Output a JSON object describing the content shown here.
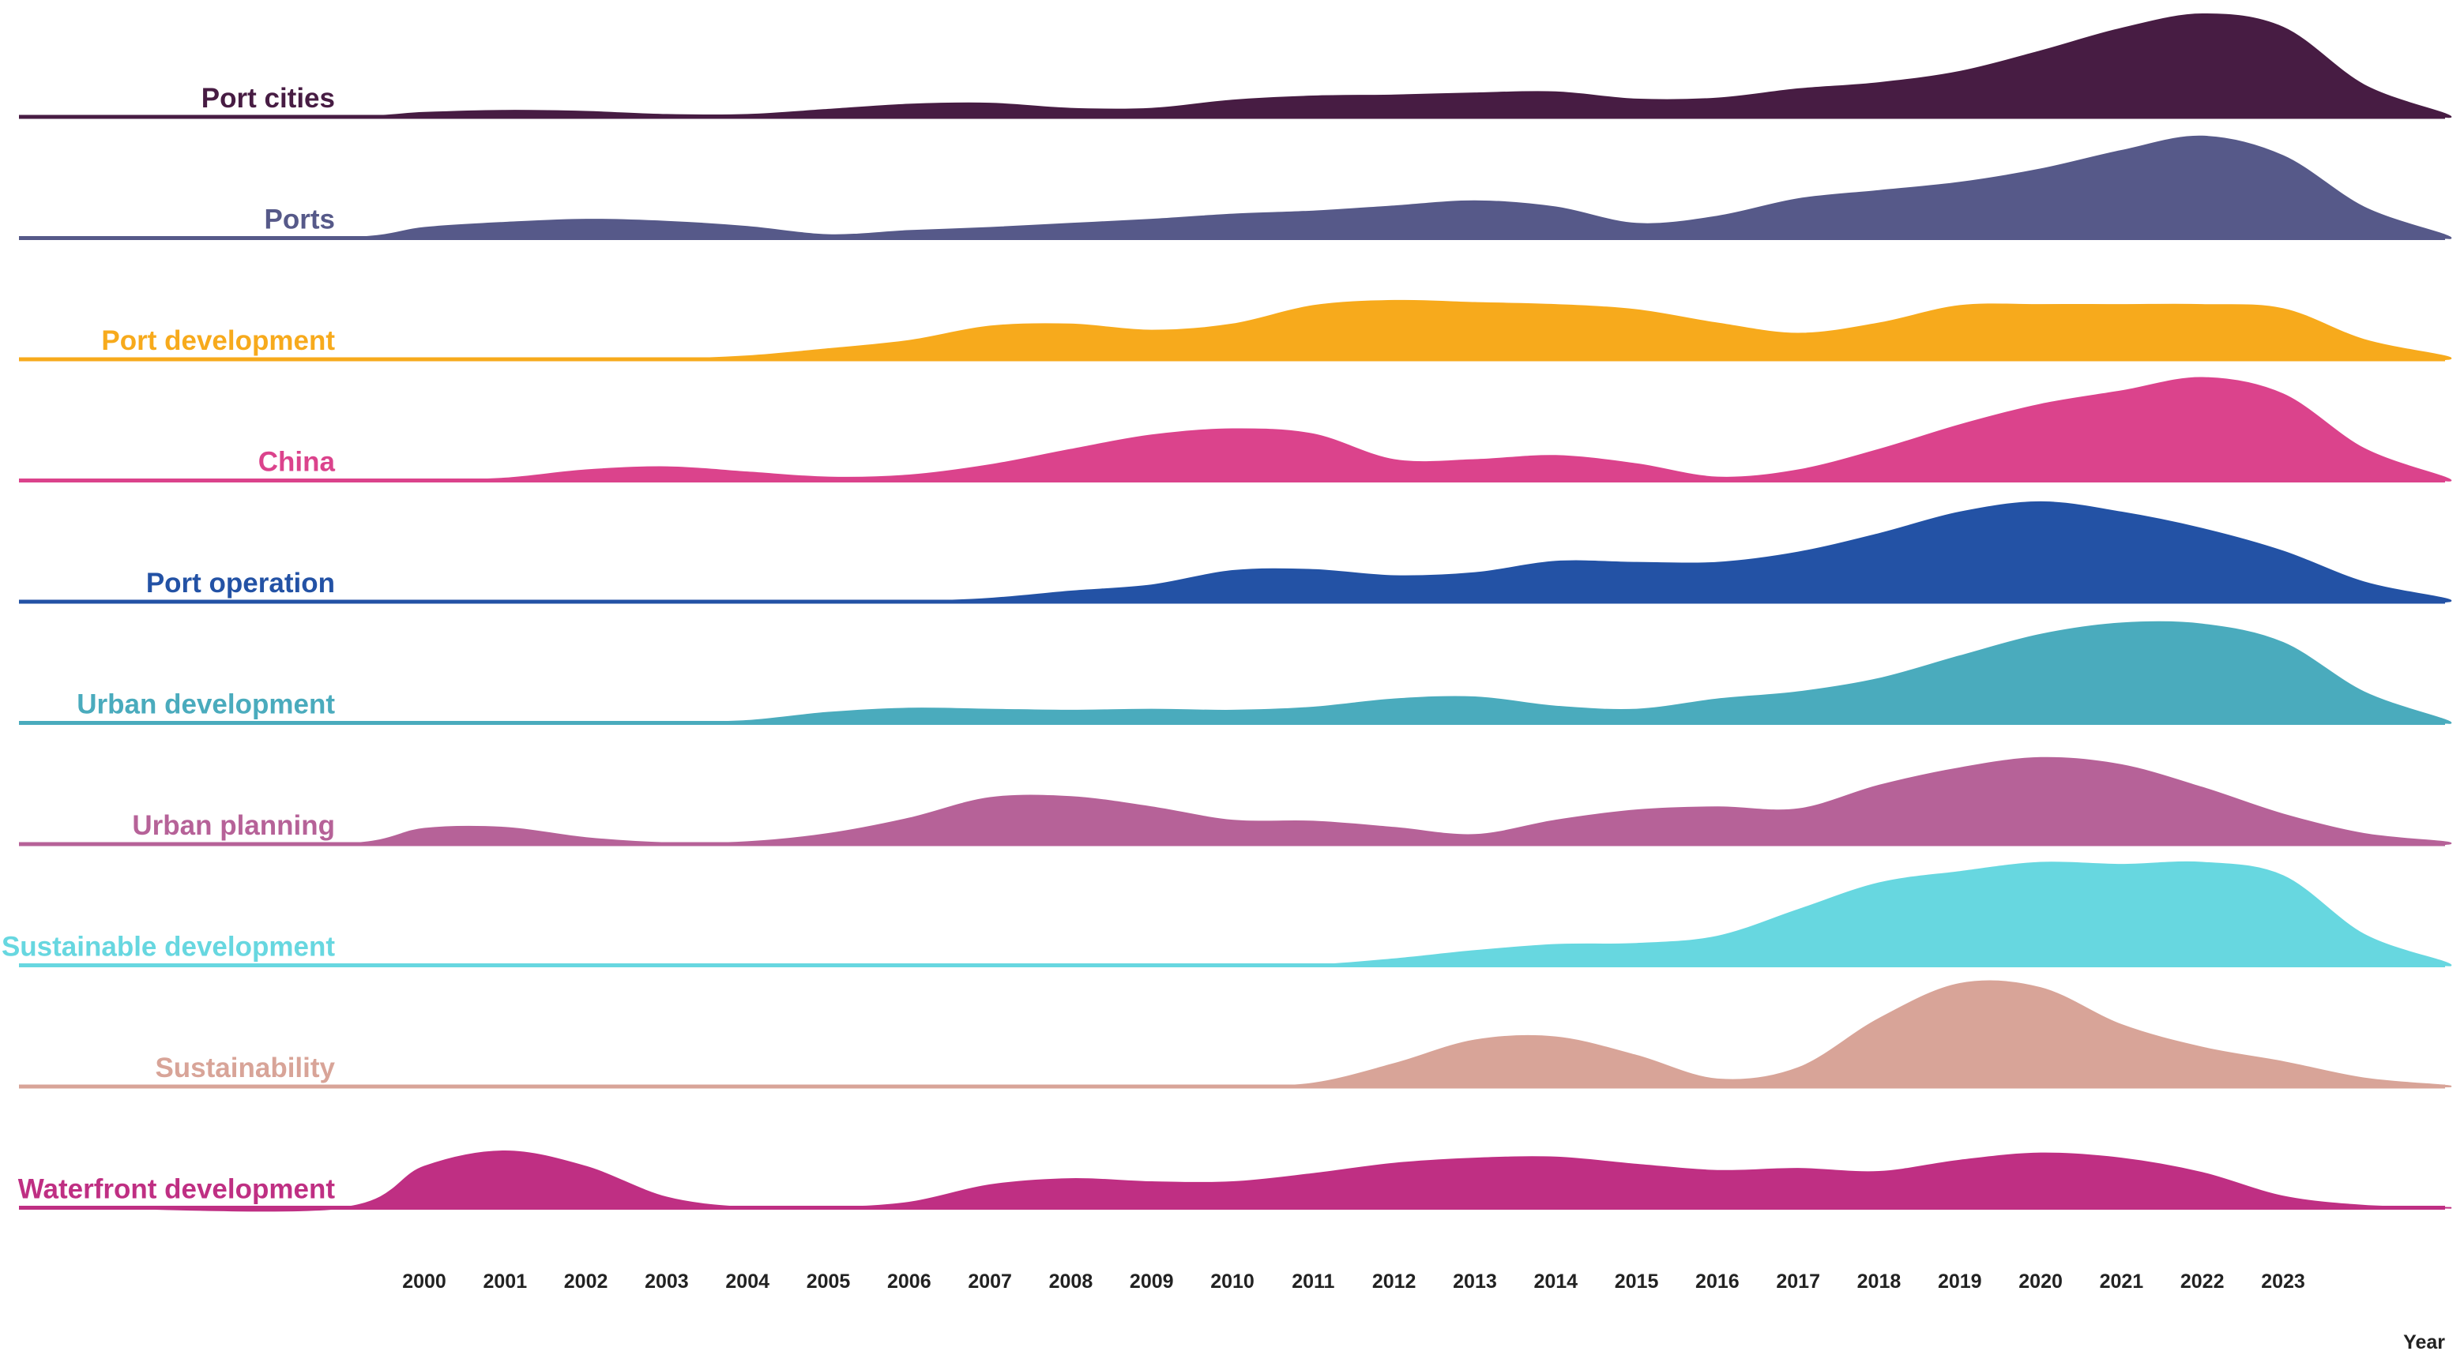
{
  "chart_data": {
    "type": "area",
    "subtype": "ridgeline",
    "title": "",
    "xlabel": "Year",
    "ylabel": "",
    "x_ticks": [
      2000,
      2001,
      2002,
      2003,
      2004,
      2005,
      2006,
      2007,
      2008,
      2009,
      2010,
      2011,
      2012,
      2013,
      2014,
      2015,
      2016,
      2017,
      2018,
      2019,
      2020,
      2021,
      2022,
      2023
    ],
    "x_range": [
      1996,
      2026
    ],
    "y_scale": "relative density (0-1 per ridge)",
    "x": [
      1996,
      1999,
      2000,
      2001,
      2002,
      2003,
      2004,
      2005,
      2006,
      2007,
      2008,
      2009,
      2010,
      2011,
      2012,
      2013,
      2014,
      2015,
      2016,
      2017,
      2018,
      2019,
      2020,
      2021,
      2022,
      2023,
      2024,
      2025,
      2026
    ],
    "series": [
      {
        "name": "Port cities",
        "color": "#471c43",
        "values": [
          0,
          0,
          0.04,
          0.06,
          0.05,
          0.02,
          0.02,
          0.07,
          0.12,
          0.13,
          0.08,
          0.08,
          0.16,
          0.2,
          0.21,
          0.23,
          0.24,
          0.17,
          0.18,
          0.27,
          0.33,
          0.44,
          0.64,
          0.86,
          1.0,
          0.87,
          0.31,
          0.03,
          0
        ]
      },
      {
        "name": "Ports",
        "color": "#565989",
        "values": [
          0,
          0,
          0.1,
          0.15,
          0.18,
          0.16,
          0.11,
          0.03,
          0.07,
          0.1,
          0.14,
          0.18,
          0.23,
          0.26,
          0.31,
          0.36,
          0.3,
          0.14,
          0.21,
          0.38,
          0.46,
          0.54,
          0.67,
          0.85,
          0.99,
          0.8,
          0.3,
          0.03,
          0
        ]
      },
      {
        "name": "Port development",
        "color": "#f7aa1c",
        "values": [
          0,
          0,
          0,
          0,
          0,
          0,
          0.03,
          0.1,
          0.18,
          0.32,
          0.34,
          0.28,
          0.34,
          0.52,
          0.57,
          0.55,
          0.53,
          0.48,
          0.35,
          0.25,
          0.35,
          0.52,
          0.53,
          0.53,
          0.53,
          0.49,
          0.19,
          0.03,
          0
        ]
      },
      {
        "name": "China",
        "color": "#db438c",
        "values": [
          0,
          0,
          0,
          0.02,
          0.1,
          0.13,
          0.08,
          0.03,
          0.05,
          0.15,
          0.3,
          0.44,
          0.5,
          0.45,
          0.2,
          0.2,
          0.24,
          0.16,
          0.03,
          0.1,
          0.3,
          0.54,
          0.74,
          0.87,
          1.0,
          0.84,
          0.31,
          0.03,
          0
        ]
      },
      {
        "name": "Port operation",
        "color": "#2352a5",
        "values": [
          0,
          0,
          0,
          0,
          0,
          0,
          0,
          0,
          0,
          0.03,
          0.1,
          0.16,
          0.3,
          0.31,
          0.25,
          0.28,
          0.39,
          0.38,
          0.38,
          0.48,
          0.66,
          0.87,
          0.97,
          0.87,
          0.71,
          0.49,
          0.19,
          0.03,
          0
        ]
      },
      {
        "name": "Urban development",
        "color": "#4aabbd",
        "values": [
          0,
          0,
          0,
          0,
          0,
          0,
          0.02,
          0.1,
          0.14,
          0.13,
          0.12,
          0.13,
          0.12,
          0.15,
          0.23,
          0.25,
          0.16,
          0.13,
          0.23,
          0.3,
          0.43,
          0.65,
          0.86,
          0.97,
          0.96,
          0.78,
          0.3,
          0.03,
          0
        ]
      },
      {
        "name": "Urban planning",
        "color": "#b66298",
        "values": [
          0,
          0,
          0.15,
          0.16,
          0.06,
          0.01,
          0.02,
          0.1,
          0.25,
          0.45,
          0.46,
          0.36,
          0.23,
          0.22,
          0.16,
          0.09,
          0.23,
          0.33,
          0.36,
          0.34,
          0.57,
          0.74,
          0.84,
          0.77,
          0.55,
          0.29,
          0.1,
          0.02,
          0
        ]
      },
      {
        "name": "Sustainable development",
        "color": "#67d7e0",
        "values": [
          0,
          0,
          0,
          0,
          0,
          0,
          0,
          0,
          0,
          0,
          0,
          0,
          0,
          0,
          0.06,
          0.14,
          0.2,
          0.21,
          0.28,
          0.54,
          0.8,
          0.91,
          1.0,
          0.98,
          1.0,
          0.87,
          0.3,
          0.03,
          0
        ]
      },
      {
        "name": "Sustainability",
        "color": "#d8a498",
        "values": [
          0,
          0,
          0,
          0,
          0,
          0,
          0,
          0,
          0,
          0,
          0,
          0,
          0,
          0.03,
          0.22,
          0.45,
          0.48,
          0.3,
          0.07,
          0.18,
          0.66,
          1.0,
          0.96,
          0.6,
          0.38,
          0.24,
          0.08,
          0.01,
          0
        ]
      },
      {
        "name": "Waterfront development",
        "color": "#bf2f83",
        "values": [
          0,
          0,
          0.4,
          0.55,
          0.4,
          0.1,
          0,
          0,
          0.05,
          0.22,
          0.28,
          0.25,
          0.25,
          0.33,
          0.43,
          0.48,
          0.49,
          0.42,
          0.36,
          0.38,
          0.35,
          0.46,
          0.53,
          0.48,
          0.34,
          0.11,
          0.02,
          0,
          0
        ]
      }
    ]
  }
}
